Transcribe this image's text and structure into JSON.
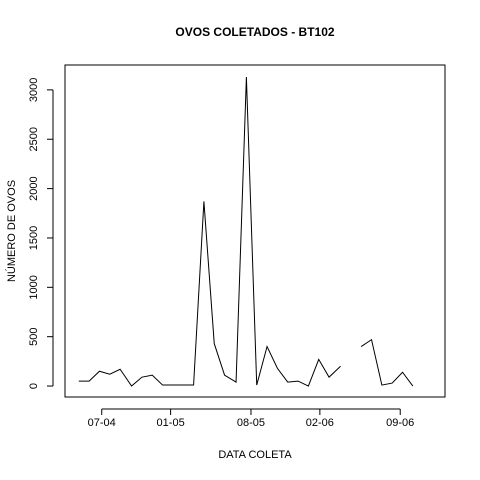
{
  "chart_data": {
    "type": "line",
    "title": "OVOS COLETADOS -  BT102",
    "x_label": "DATA COLETA",
    "y_label": "NÚMERO DE OVOS",
    "x": [
      -2.0,
      -1.1,
      -0.2,
      0.7,
      1.6,
      2.6,
      3.5,
      4.4,
      5.3,
      6.2,
      7.1,
      8.0,
      8.9,
      9.8,
      10.7,
      11.7,
      12.6,
      13.5,
      14.4,
      15.3,
      16.2,
      17.1,
      18.0,
      18.9,
      19.8,
      20.8,
      21.7,
      22.6,
      23.5,
      24.4,
      25.3,
      26.2,
      27.1
    ],
    "series": [
      {
        "name": "BT102",
        "color": "#000000",
        "values": [
          50,
          50,
          150,
          120,
          170,
          0,
          90,
          110,
          10,
          10,
          10,
          10,
          1870,
          430,
          110,
          40,
          3130,
          10,
          400,
          180,
          40,
          50,
          0,
          270,
          90,
          200,
          null,
          400,
          470,
          10,
          30,
          140,
          0
        ]
      }
    ],
    "xlim": [
      -3.2,
      29.9
    ],
    "xticks": [
      {
        "value": 0,
        "label": "07-04"
      },
      {
        "value": 6,
        "label": "01-05"
      },
      {
        "value": 13,
        "label": "08-05"
      },
      {
        "value": 19,
        "label": "02-06"
      },
      {
        "value": 26,
        "label": "09-06"
      }
    ],
    "ylim": [
      -111,
      3252
    ],
    "yticks": [
      0,
      500,
      1000,
      1500,
      2000,
      2500,
      3000
    ]
  }
}
